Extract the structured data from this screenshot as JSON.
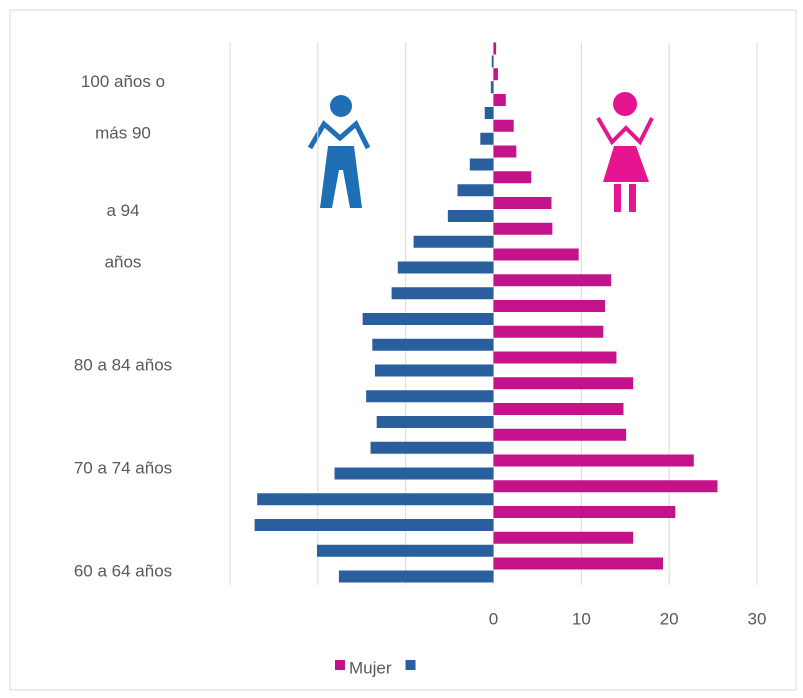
{
  "chart_data": {
    "type": "pyramid",
    "categories": [
      "60 a 64 años",
      null,
      null,
      null,
      "70 a 74 años",
      null,
      null,
      null,
      "80 a 84 años",
      null,
      null,
      null,
      "años",
      null,
      "a 94",
      null,
      null,
      "más 90",
      null,
      "100 años o",
      null
    ],
    "series": [
      {
        "name": "Mujer",
        "color": "#c4138a",
        "values": [
          19.3,
          15.9,
          20.7,
          25.5,
          22.8,
          15.1,
          14.8,
          15.9,
          14.0,
          12.5,
          12.7,
          13.4,
          9.7,
          6.7,
          6.6,
          4.3,
          2.6,
          2.3,
          1.4,
          0.5,
          0.3
        ]
      },
      {
        "color": "#2a5f9e",
        "values": [
          -17.6,
          -20.1,
          -27.2,
          -26.9,
          -18.1,
          -14.0,
          -13.3,
          -14.5,
          -13.5,
          -13.8,
          -14.9,
          -11.6,
          -10.9,
          -9.1,
          -5.2,
          -4.1,
          -2.7,
          -1.5,
          -1.0,
          -0.3,
          -0.2
        ]
      }
    ],
    "xlim": [
      -30,
      30
    ],
    "xticks": [
      0,
      10,
      20,
      30
    ],
    "grid": true
  }
}
